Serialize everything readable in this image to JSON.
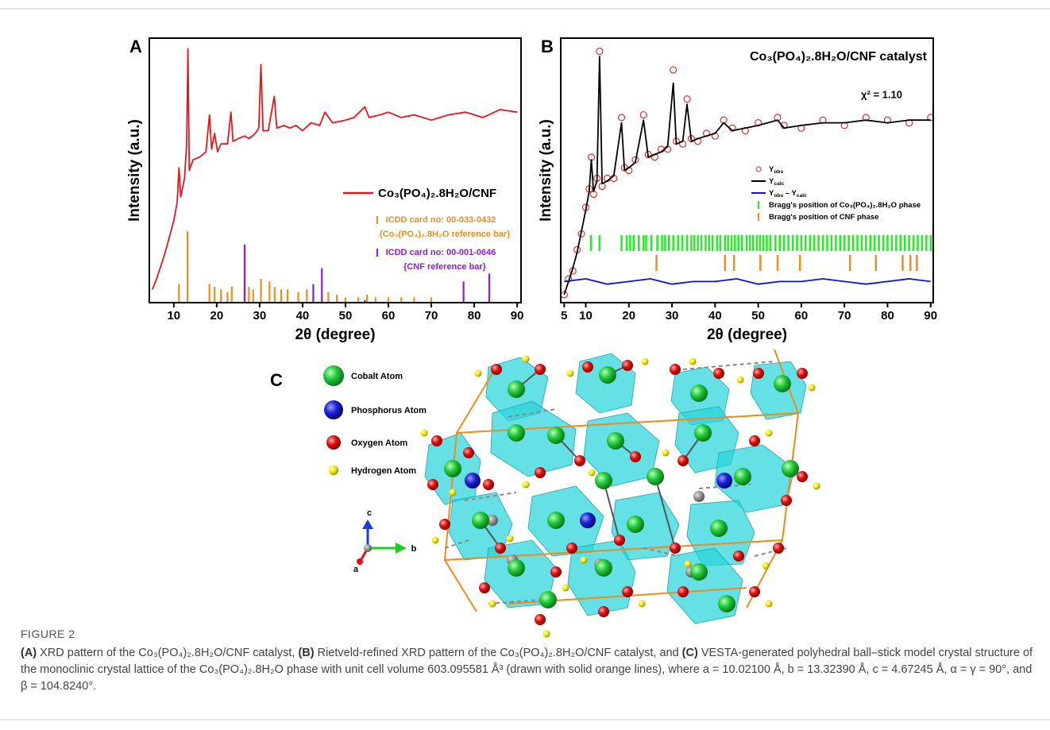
{
  "chart_data": [
    {
      "type": "line",
      "label": "A",
      "xlabel": "2θ (degree)",
      "ylabel": "Intensity (a.u.)",
      "xlim": [
        4.3,
        90.9
      ],
      "ylim": [
        0,
        100
      ],
      "xticks": [
        10,
        20,
        30,
        40,
        50,
        60,
        70,
        80,
        90
      ],
      "series": [
        {
          "name": "Co₃(PO₄)₂.8H₂O/CNF",
          "color": "#e8151b",
          "x": [
            5,
            6,
            7,
            8,
            9,
            10,
            10.8,
            11.2,
            11.6,
            12.5,
            13.0,
            13.3,
            13.6,
            14.5,
            16,
            17.5,
            18.3,
            18.8,
            19.5,
            20.2,
            21,
            22.5,
            23.3,
            23.8,
            25,
            26.5,
            27.5,
            29,
            29.8,
            30.3,
            30.8,
            32,
            33.4,
            34,
            35.7,
            37,
            38.5,
            40,
            42,
            44,
            45.2,
            47,
            50,
            52,
            54.5,
            55.5,
            58,
            60,
            63,
            66,
            70,
            74,
            78,
            82,
            86,
            90
          ],
          "values": [
            5,
            9,
            14,
            19,
            25,
            31,
            38,
            51,
            40,
            47,
            60,
            96,
            50,
            54,
            55,
            57,
            71,
            58,
            64,
            57,
            60,
            60,
            72,
            61,
            62,
            63,
            62,
            64,
            66,
            90,
            65,
            65,
            78,
            66,
            67,
            66,
            67,
            65,
            68,
            67,
            72,
            68,
            69,
            70,
            74,
            70,
            71,
            72,
            70,
            71,
            69,
            71,
            72,
            70,
            73,
            72
          ]
        },
        {
          "type": "bar",
          "name": "ICDD card no: 00-033-0432",
          "description": "{Co₃(PO₄)₂.8H₂O reference bar}",
          "color": "#f28c1c",
          "x": [
            11.2,
            13.2,
            18.3,
            19.5,
            21,
            22.5,
            23.5,
            26.5,
            27.5,
            28.5,
            30.3,
            32.3,
            33.5,
            35,
            36.5,
            39,
            41,
            42.5,
            44.5,
            46,
            48,
            50,
            53,
            55,
            57,
            60,
            63,
            66,
            70
          ],
          "values": [
            7,
            27,
            7,
            6,
            5,
            4,
            6,
            8,
            6,
            5,
            9,
            8,
            6,
            5,
            5,
            4,
            5,
            3,
            2,
            4,
            3,
            2,
            2,
            3,
            2,
            2,
            2,
            2,
            2
          ]
        },
        {
          "type": "bar",
          "name": "ICDD card no: 00-001-0646",
          "description": "{CNF reference bar}",
          "color": "#8b1fd6",
          "x": [
            26.5,
            42.5,
            44.5,
            54.5,
            77.5,
            83.5
          ],
          "values": [
            22,
            7,
            13,
            1,
            8,
            11
          ]
        }
      ]
    },
    {
      "type": "scatter",
      "label": "B",
      "title": "Co₃(PO₄)₂.8H₂O/CNF catalyst",
      "annotation": "χ² = 1.10",
      "xlabel": "2θ (degree)",
      "ylabel": "Intensity (a.u.)",
      "xlim": [
        4.2,
        90.6
      ],
      "ylim": [
        0,
        100
      ],
      "xticks": [
        5,
        10,
        20,
        30,
        40,
        50,
        60,
        70,
        80,
        90
      ],
      "x": [
        5,
        6,
        7,
        8,
        9,
        10,
        10.8,
        11.3,
        11.8,
        12.6,
        13.2,
        13.8,
        15,
        16.5,
        18.3,
        19,
        20,
        21.5,
        23.4,
        24.5,
        26,
        27.5,
        29,
        30.3,
        31,
        32.5,
        33.5,
        34.5,
        36,
        38,
        40,
        42,
        44,
        47,
        50,
        54.5,
        56,
        60,
        65,
        70,
        75,
        80,
        85,
        90
      ],
      "series": [
        {
          "name": "Yobs",
          "color": "#e53030",
          "values": [
            3,
            9,
            12,
            20,
            26,
            36,
            43,
            55,
            41,
            47,
            95,
            44,
            47,
            47,
            70,
            51,
            50,
            54,
            71,
            56,
            55,
            58,
            58,
            88,
            61,
            60,
            77,
            62,
            61,
            64,
            63,
            69,
            66,
            65,
            68,
            70,
            67,
            66,
            69,
            67,
            70,
            69,
            68,
            70
          ]
        },
        {
          "type": "line",
          "name": "Ycalc",
          "color": "#000000",
          "values": [
            3,
            8,
            13,
            19,
            27,
            35,
            42,
            54,
            42,
            46,
            93,
            45,
            46,
            48,
            68,
            50,
            51,
            53,
            69,
            55,
            56,
            57,
            59,
            83,
            60,
            61,
            75,
            61,
            62,
            63,
            64,
            68,
            65,
            66,
            67,
            69,
            66,
            67,
            68,
            68,
            69,
            68,
            69,
            69
          ]
        },
        {
          "type": "line",
          "name": "Yobs – Ycalc",
          "color": "#0a14d8",
          "x": [
            5,
            10,
            15,
            20,
            25,
            30,
            35,
            40,
            45,
            50,
            55,
            60,
            65,
            70,
            75,
            80,
            85,
            90
          ],
          "values": [
            8,
            9,
            7,
            8,
            9,
            7,
            8,
            8,
            9,
            7,
            8,
            8,
            9,
            8,
            7,
            8,
            9,
            8
          ]
        },
        {
          "type": "ticks",
          "name": "Bragg's position of Co₃(PO₄)₂.8H₂O phase",
          "color": "#22ee22",
          "x": [
            11.2,
            13.2,
            18.3,
            19.5,
            20.3,
            21.1,
            22.3,
            23.4,
            24.0,
            25.2,
            26.6,
            27.7,
            28.4,
            29.3,
            30.3,
            31.4,
            32.4,
            33.5,
            34.5,
            35.2,
            36.0,
            36.8,
            37.8,
            38.6,
            39.4,
            40.5,
            41.2,
            42.3,
            43.0,
            43.8,
            44.6,
            45.4,
            46.2,
            47.3,
            48.1,
            48.8,
            49.7,
            50.4,
            51.2,
            52.0,
            52.8,
            54,
            55,
            56,
            57,
            58,
            59,
            60,
            61,
            62,
            63,
            64,
            65,
            66,
            67,
            68,
            69,
            70,
            71,
            72,
            73,
            74,
            75,
            76,
            77,
            78,
            79,
            80,
            81,
            82,
            83,
            84,
            85,
            86,
            87,
            88,
            89,
            90
          ]
        },
        {
          "type": "ticks",
          "name": "Bragg's position of CNF  phase",
          "color": "#f28c1c",
          "x": [
            26.4,
            42.3,
            44.4,
            50.5,
            54.5,
            59.7,
            71.3,
            77.3,
            83.5,
            85.3,
            86.8
          ]
        }
      ]
    }
  ],
  "structure": {
    "label": "C",
    "legend": [
      "Cobalt Atom",
      "Phosphorus Atom",
      "Oxygen Atom",
      "Hydrogen Atom"
    ],
    "axes": [
      "c",
      "b",
      "a"
    ]
  },
  "caption": {
    "label": "FIGURE 2",
    "segments": [
      "(A)",
      " XRD pattern of the Co₃(PO₄)₂.8H₂O/CNF catalyst, ",
      "(B)",
      " Rietveld-refined XRD pattern of the Co₃(PO₄)₂.8H₂O/CNF catalyst, and ",
      "(C)",
      " VESTA-generated polyhedral ball–stick model crystal structure of the monoclinic crystal lattice of the Co₃(PO₄)₂.8H₂O phase with unit cell volume 603.095581 Å³ (drawn with solid orange lines), where a = 10.02100 Å, b = 13.32390 Å, c = 4.67245 Å, α = γ = 90°, and β = 104.8240°."
    ]
  }
}
